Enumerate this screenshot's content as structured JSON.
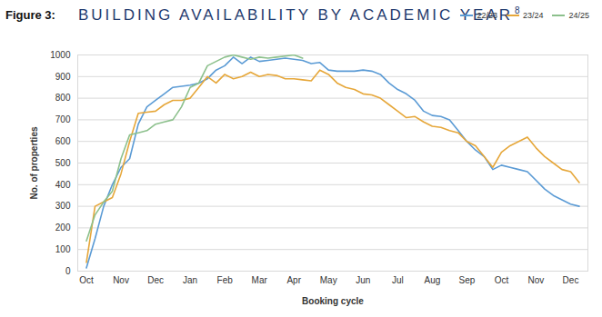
{
  "chart_data": {
    "type": "line",
    "figure_label": "Figure 3:",
    "title": "BUILDING AVAILABILITY BY ACADEMIC YEAR",
    "title_superscript": "8",
    "xlabel": "Booking cycle",
    "ylabel": "No. of properties",
    "x": [
      0,
      0.25,
      0.5,
      0.75,
      1,
      1.25,
      1.5,
      1.75,
      2,
      2.25,
      2.5,
      2.75,
      3,
      3.25,
      3.5,
      3.75,
      4,
      4.25,
      4.5,
      4.75,
      5,
      5.25,
      5.5,
      5.75,
      6,
      6.25,
      6.5,
      6.75,
      7,
      7.25,
      7.5,
      7.75,
      8,
      8.25,
      8.5,
      8.75,
      9,
      9.25,
      9.5,
      9.75,
      10,
      10.25,
      10.5,
      10.75,
      11,
      11.25,
      11.5,
      11.75,
      12,
      12.25,
      12.5,
      12.75,
      13,
      13.25,
      13.5,
      13.75,
      14,
      14.25
    ],
    "series": [
      {
        "name": "22/23",
        "color": "#5b9bd5",
        "values": [
          15,
          150,
          300,
          400,
          480,
          520,
          680,
          760,
          790,
          820,
          850,
          855,
          860,
          870,
          890,
          930,
          950,
          990,
          960,
          990,
          970,
          975,
          980,
          985,
          980,
          975,
          960,
          965,
          930,
          925,
          925,
          925,
          930,
          925,
          910,
          870,
          840,
          820,
          790,
          740,
          720,
          715,
          700,
          650,
          600,
          560,
          530,
          470,
          490,
          480,
          470,
          460,
          420,
          380,
          350,
          330,
          310,
          300
        ]
      },
      {
        "name": "23/24",
        "color": "#e6a73a",
        "values": [
          40,
          300,
          320,
          340,
          450,
          600,
          730,
          735,
          740,
          770,
          790,
          790,
          800,
          850,
          900,
          870,
          910,
          890,
          900,
          920,
          900,
          910,
          905,
          890,
          890,
          885,
          880,
          930,
          910,
          870,
          850,
          840,
          820,
          815,
          800,
          770,
          740,
          710,
          715,
          690,
          670,
          665,
          650,
          640,
          600,
          580,
          530,
          480,
          550,
          580,
          600,
          620,
          570,
          530,
          500,
          470,
          460,
          410
        ]
      },
      {
        "name": "24/25",
        "color": "#8cc08c",
        "values": [
          140,
          260,
          320,
          370,
          520,
          630,
          640,
          650,
          680,
          690,
          700,
          760,
          850,
          870,
          950,
          970,
          990,
          1000,
          990,
          980,
          990,
          985,
          990,
          995,
          1000,
          985,
          null,
          null,
          null,
          null,
          null,
          null,
          null,
          null,
          null,
          null,
          null,
          null,
          null,
          null,
          null,
          null,
          null,
          null,
          null,
          null,
          null,
          null,
          null,
          null,
          null,
          null,
          null,
          null,
          null,
          null,
          null,
          null
        ]
      }
    ],
    "xlim": [
      -0.25,
      14.5
    ],
    "xticks": [
      {
        "value": 0,
        "label": "Oct"
      },
      {
        "value": 1,
        "label": "Nov"
      },
      {
        "value": 2,
        "label": "Dec"
      },
      {
        "value": 3,
        "label": "Jan"
      },
      {
        "value": 4,
        "label": "Feb"
      },
      {
        "value": 5,
        "label": "Mar"
      },
      {
        "value": 6,
        "label": "Apr"
      },
      {
        "value": 7,
        "label": "May"
      },
      {
        "value": 8,
        "label": "Jun"
      },
      {
        "value": 9,
        "label": "Jul"
      },
      {
        "value": 10,
        "label": "Aug"
      },
      {
        "value": 11,
        "label": "Sep"
      },
      {
        "value": 12,
        "label": "Oct"
      },
      {
        "value": 13,
        "label": "Nov"
      },
      {
        "value": 14,
        "label": "Dec"
      }
    ],
    "ylim": [
      0,
      1000
    ],
    "yticks": [
      0,
      100,
      200,
      300,
      400,
      500,
      600,
      700,
      800,
      900,
      1000
    ],
    "grid": true,
    "legend": "top-right"
  }
}
